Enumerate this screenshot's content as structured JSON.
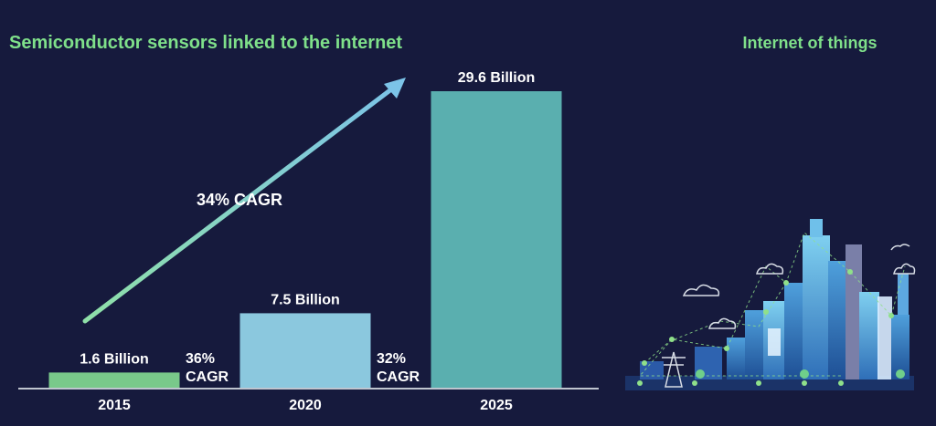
{
  "chart_data": {
    "type": "bar",
    "title": "Semiconductor sensors linked to the internet",
    "categories": [
      "2015",
      "2020",
      "2025"
    ],
    "values": [
      1.6,
      7.5,
      29.6
    ],
    "value_labels": [
      "1.6 Billion",
      "7.5 Billion",
      "29.6 Billion"
    ],
    "unit": "Billion",
    "ylim": [
      0,
      29.6
    ],
    "grid": false,
    "legend": "none",
    "annotations": {
      "overall_cagr": "34% CAGR",
      "cagr_2015_2020_pct": "36%",
      "cagr_2015_2020_label": "CAGR",
      "cagr_2020_2025_pct": "32%",
      "cagr_2020_2025_label": "CAGR"
    },
    "colors": {
      "background": "#161a3d",
      "title": "#7fe08a",
      "bar_2015": "#79c98a",
      "bar_2020": "#8bc8de",
      "bar_2025": "#5aafaf",
      "arrow_start": "#8fe0a8",
      "arrow_end": "#7cc4e8",
      "text": "#ffffff",
      "axis": "#bfc5cf"
    }
  },
  "sidebar": {
    "title": "Internet of things",
    "illustration_icon": "smart-city-network-icon"
  }
}
